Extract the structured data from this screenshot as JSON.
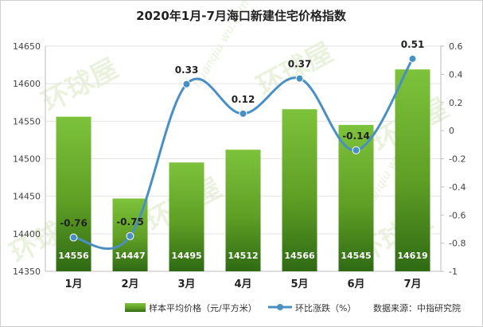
{
  "chart_data": {
    "type": "bar",
    "title": "2020年1月-7月海口新建住宅价格指数",
    "categories": [
      "1月",
      "2月",
      "3月",
      "4月",
      "5月",
      "6月",
      "7月"
    ],
    "series": [
      {
        "name": "样本平均价格（元/平方米）",
        "type": "bar",
        "axis": "left",
        "color": "#6aaa2a",
        "values": [
          14556,
          14447,
          14495,
          14512,
          14566,
          14545,
          14619
        ],
        "labels": [
          "14556",
          "14447",
          "14495",
          "14512",
          "14566",
          "14545",
          "14619"
        ]
      },
      {
        "name": "环比涨跌（%）",
        "type": "line",
        "axis": "right",
        "color": "#4a8fc4",
        "values": [
          -0.76,
          -0.75,
          0.33,
          0.12,
          0.37,
          -0.14,
          0.51
        ],
        "labels": [
          "-0.76",
          "-0.75",
          "0.33",
          "0.12",
          "0.37",
          "-0.14",
          "0.51"
        ]
      }
    ],
    "y_left": {
      "min": 14350,
      "max": 14650,
      "ticks": [
        "14350",
        "14400",
        "14450",
        "14500",
        "14550",
        "14600",
        "14650"
      ]
    },
    "y_right": {
      "min": -1,
      "max": 0.6,
      "ticks": [
        "0.6",
        "0.4",
        "0.2",
        "0",
        "-0.2",
        "-0.4",
        "-0.6",
        "-0.8",
        "-1"
      ]
    },
    "grid": true,
    "legend_position": "bottom-left"
  },
  "source_note": "数据来源：中指研究院",
  "watermark": "环球屋",
  "watermark_sub": "huanqiu wu.com"
}
